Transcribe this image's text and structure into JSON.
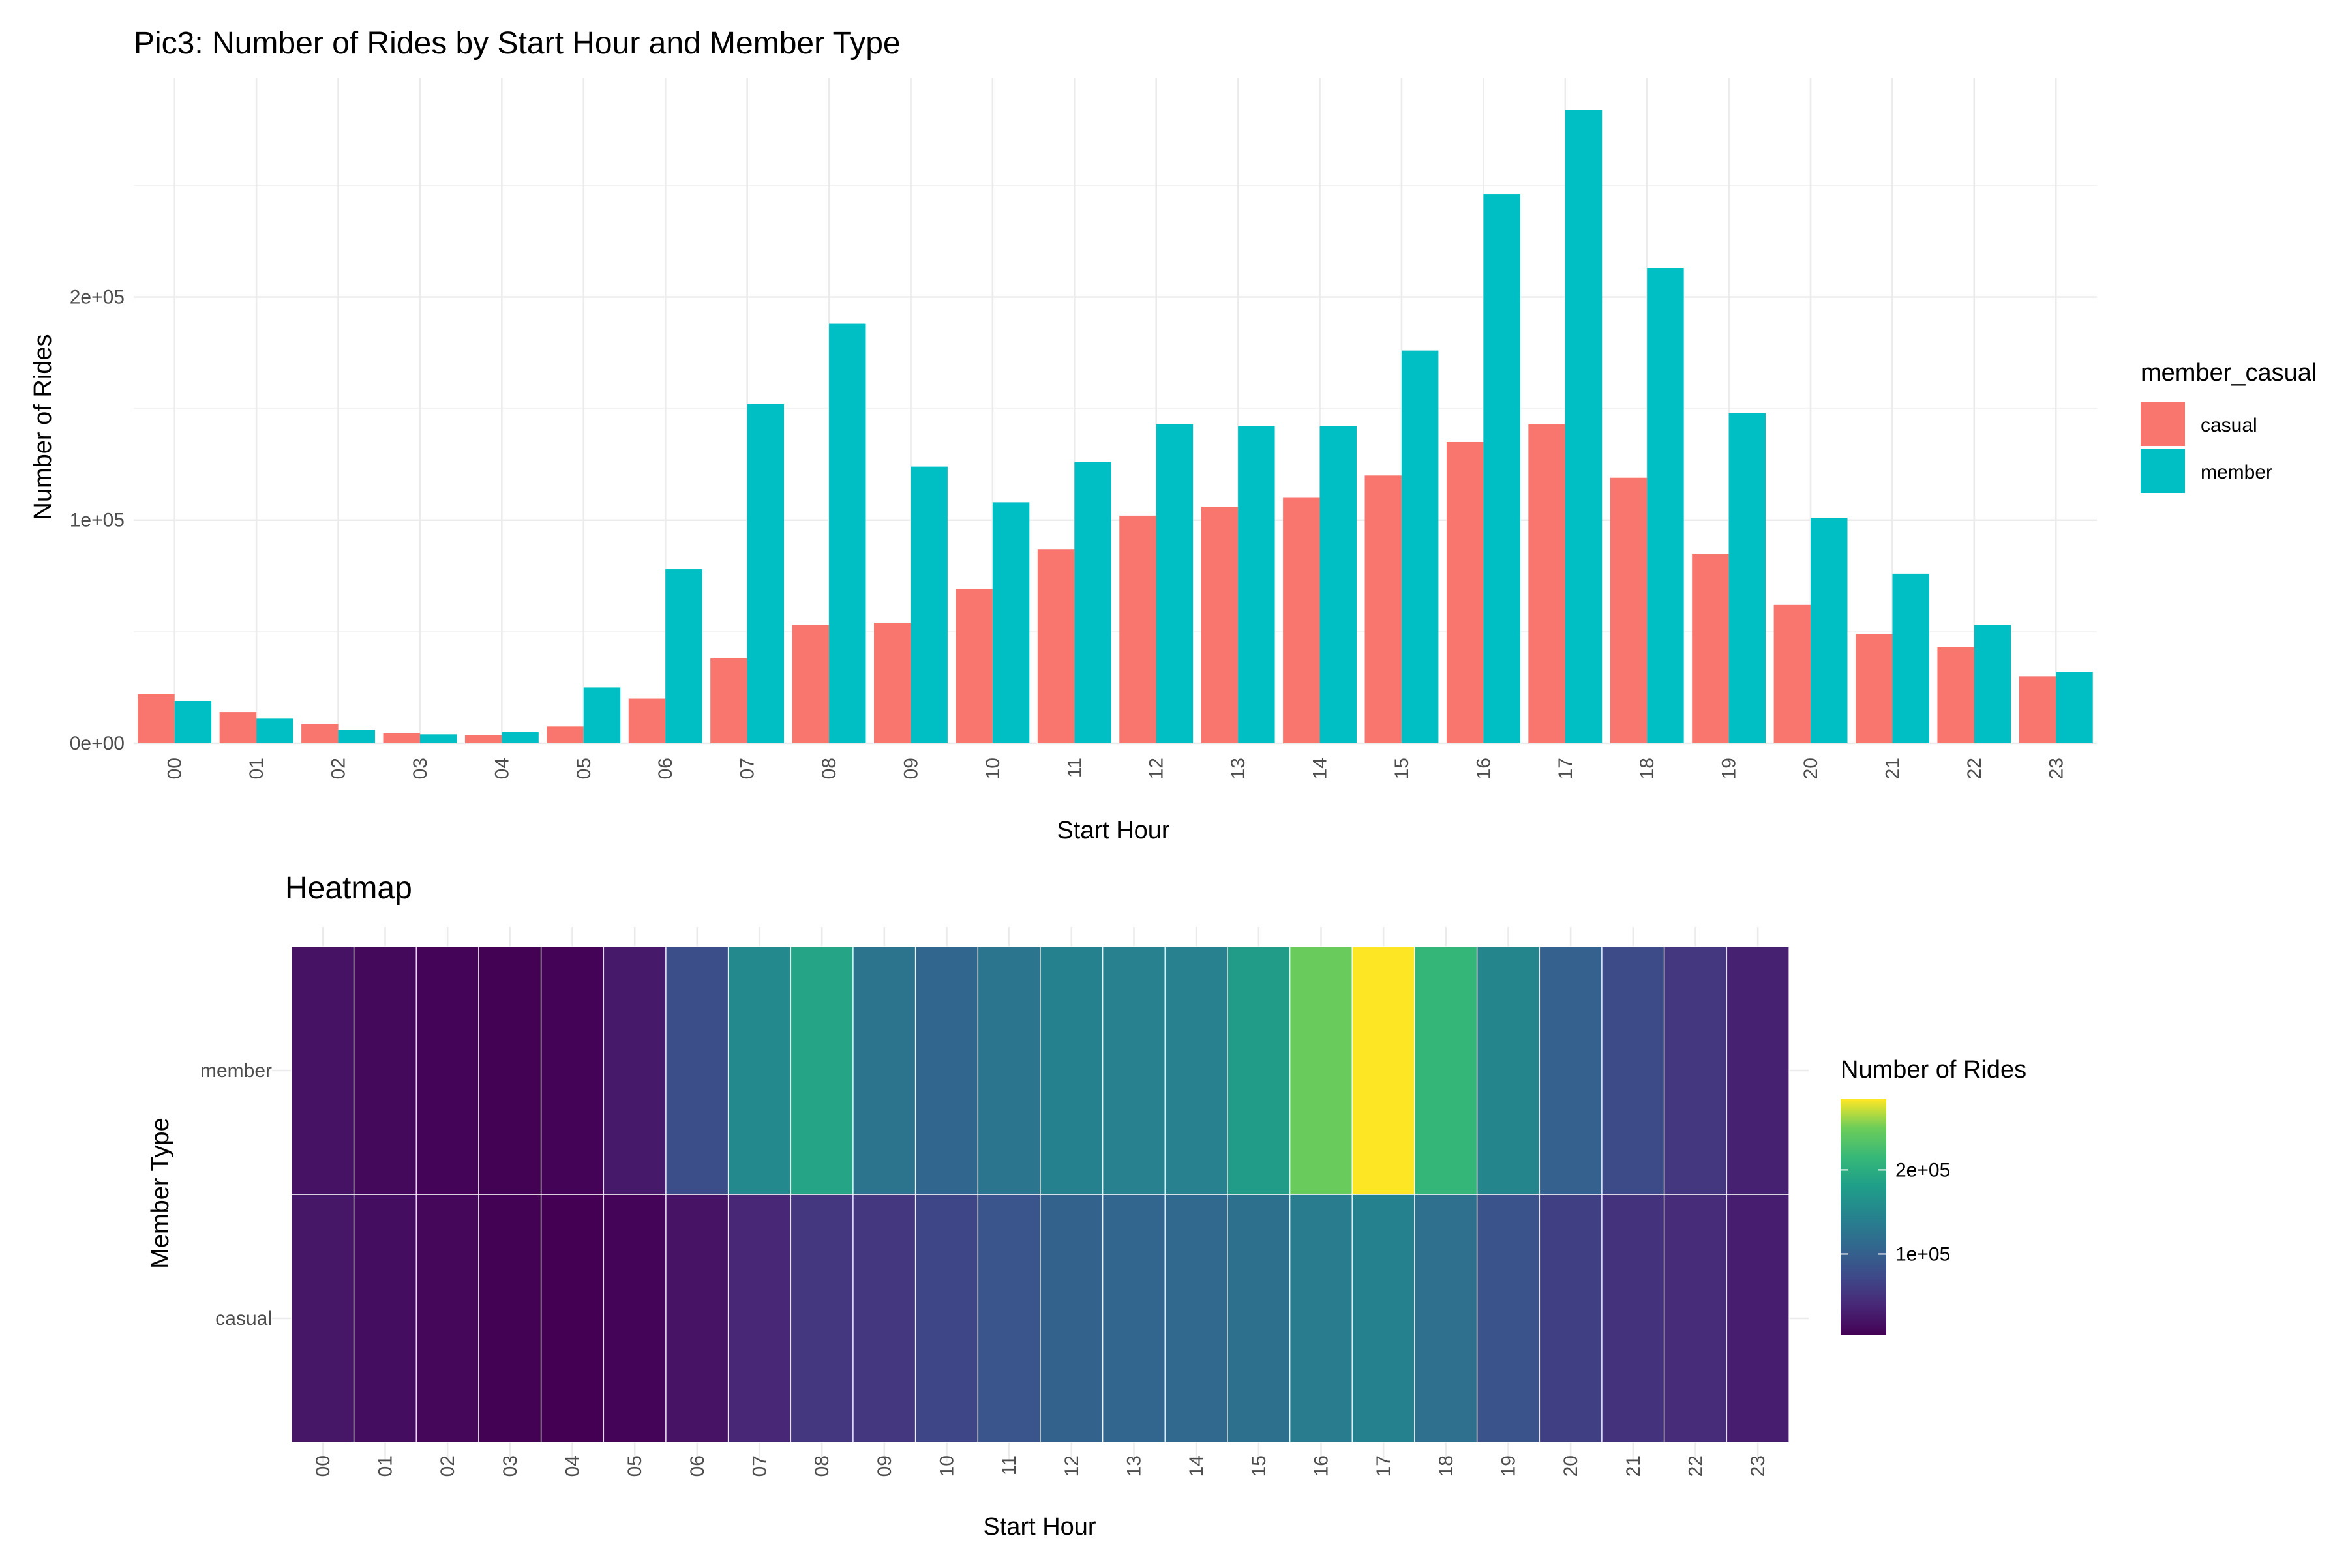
{
  "chart_data": [
    {
      "type": "bar",
      "title": "Pic3: Number of Rides by Start Hour and Member Type",
      "xlabel": "Start Hour",
      "ylabel": "Number of Rides",
      "categories": [
        "00",
        "01",
        "02",
        "03",
        "04",
        "05",
        "06",
        "07",
        "08",
        "09",
        "10",
        "11",
        "12",
        "13",
        "14",
        "15",
        "16",
        "17",
        "18",
        "19",
        "20",
        "21",
        "22",
        "23"
      ],
      "series": [
        {
          "name": "casual",
          "color": "#F8766D",
          "values": [
            22000,
            14000,
            8500,
            4500,
            3500,
            7500,
            20000,
            38000,
            53000,
            54000,
            69000,
            87000,
            102000,
            106000,
            110000,
            120000,
            135000,
            143000,
            119000,
            85000,
            62000,
            49000,
            43000,
            30000
          ]
        },
        {
          "name": "member",
          "color": "#00BFC4",
          "values": [
            19000,
            11000,
            6000,
            4000,
            5000,
            25000,
            78000,
            152000,
            188000,
            124000,
            108000,
            126000,
            143000,
            142000,
            142000,
            176000,
            246000,
            284000,
            213000,
            148000,
            101000,
            76000,
            53000,
            32000
          ]
        }
      ],
      "ylim": [
        0,
        284000
      ],
      "yticks": [
        0,
        100000,
        200000
      ],
      "ytick_labels": [
        "0e+00",
        "1e+05",
        "2e+05"
      ],
      "legend_title": "member_casual",
      "legend_position": "right",
      "grid": true
    },
    {
      "type": "heatmap",
      "title": "Heatmap",
      "xlabel": "Start Hour",
      "ylabel": "Member Type",
      "x": [
        "00",
        "01",
        "02",
        "03",
        "04",
        "05",
        "06",
        "07",
        "08",
        "09",
        "10",
        "11",
        "12",
        "13",
        "14",
        "15",
        "16",
        "17",
        "18",
        "19",
        "20",
        "21",
        "22",
        "23"
      ],
      "y": [
        "casual",
        "member"
      ],
      "colorscale": "viridis",
      "colorbar_title": "Number of Rides",
      "colorbar_ticks": [
        100000,
        200000
      ],
      "colorbar_tick_labels": [
        "1e+05",
        "2e+05"
      ],
      "colorbar_range": [
        3500,
        284000
      ],
      "legend_position": "right"
    }
  ]
}
